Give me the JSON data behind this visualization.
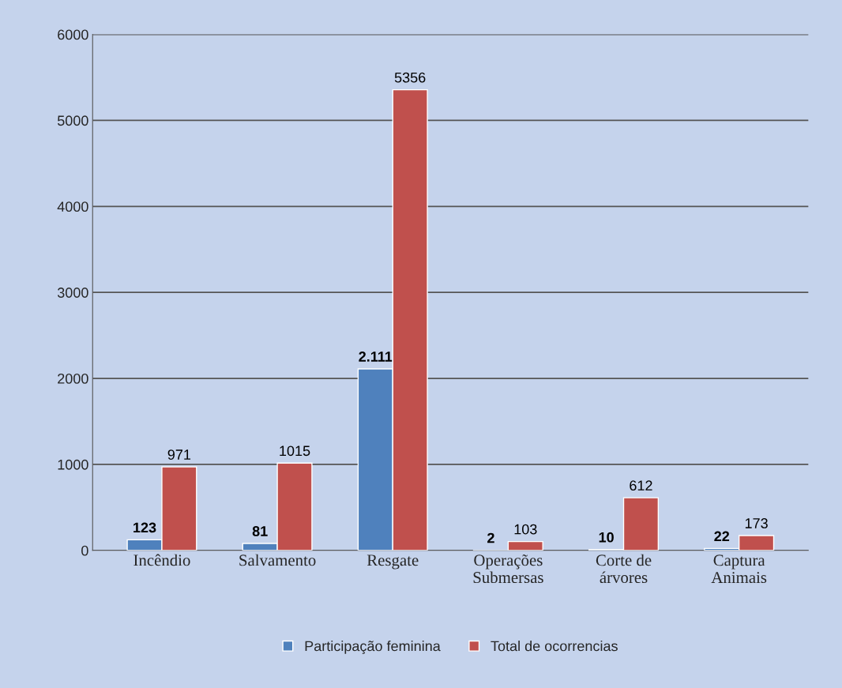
{
  "chart_data": {
    "type": "bar",
    "categories": [
      "Incêndio",
      "Salvamento",
      "Resgate",
      "Operações\nSubmersas",
      "Corte de\nárvores",
      "Captura\nAnimais"
    ],
    "series": [
      {
        "name": "Participação feminina",
        "color": "#4f81bd",
        "values": [
          123,
          81,
          2111,
          2,
          10,
          22
        ],
        "value_labels": [
          "123",
          "81",
          "2.111",
          "2",
          "10",
          "22"
        ]
      },
      {
        "name": "Total de ocorrencias",
        "color": "#c0504d",
        "values": [
          971,
          1015,
          5356,
          103,
          612,
          173
        ],
        "value_labels": [
          "971",
          "1015",
          "5356",
          "103",
          "612",
          "173"
        ]
      }
    ],
    "ylim": [
      0,
      6000
    ],
    "yticks": [
      0,
      1000,
      2000,
      3000,
      4000,
      5000,
      6000
    ],
    "grid": "y",
    "legend": "bottom"
  }
}
